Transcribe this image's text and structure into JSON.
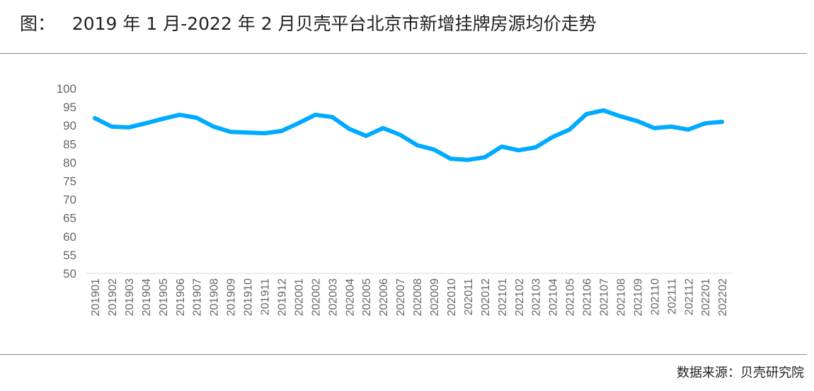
{
  "title": "图：   2019 年 1 月-2022 年 2 月贝壳平台北京市新增挂牌房源均价走势",
  "source": "数据来源：贝壳研究院",
  "colors": {
    "line": "#00AAFF",
    "axis_text": "#666666",
    "axis_line": "#D9D9D9"
  },
  "chart_data": {
    "type": "line",
    "title": "",
    "xlabel": "",
    "ylabel": "",
    "ylim": [
      50,
      100
    ],
    "yticks": [
      50,
      55,
      60,
      65,
      70,
      75,
      80,
      85,
      90,
      95,
      100
    ],
    "grid": false,
    "categories": [
      "201901",
      "201902",
      "201903",
      "201904",
      "201905",
      "201906",
      "201907",
      "201908",
      "201909",
      "201910",
      "201911",
      "201912",
      "202001",
      "202002",
      "202003",
      "202004",
      "202005",
      "202006",
      "202007",
      "202008",
      "202009",
      "202010",
      "202011",
      "202012",
      "202101",
      "202102",
      "202103",
      "202104",
      "202105",
      "202106",
      "202107",
      "202108",
      "202109",
      "202110",
      "202111",
      "202112",
      "202201",
      "202202"
    ],
    "values": [
      92.0,
      89.7,
      89.5,
      90.6,
      91.8,
      92.9,
      92.1,
      89.7,
      88.3,
      88.1,
      87.9,
      88.5,
      90.6,
      92.9,
      92.3,
      89.1,
      87.2,
      89.3,
      87.5,
      84.7,
      83.5,
      81.0,
      80.7,
      81.4,
      84.3,
      83.3,
      84.1,
      86.9,
      88.9,
      93.1,
      94.1,
      92.5,
      91.2,
      89.3,
      89.7,
      88.9,
      90.6,
      91.0
    ]
  }
}
